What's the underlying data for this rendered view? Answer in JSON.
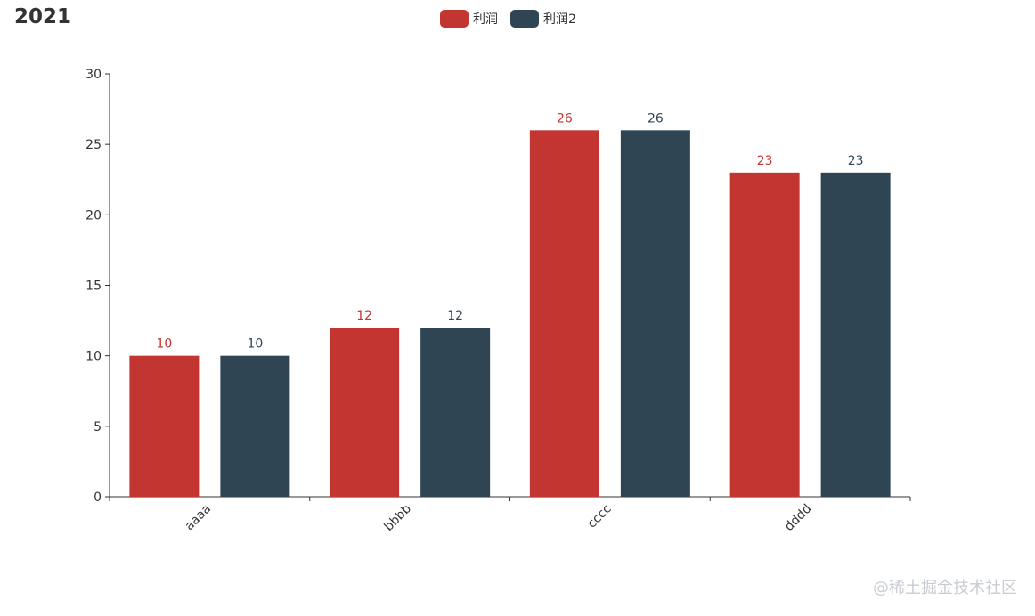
{
  "chart_data": {
    "type": "bar",
    "title": "2021",
    "categories": [
      "aaaa",
      "bbbb",
      "cccc",
      "dddd"
    ],
    "series": [
      {
        "name": "利润",
        "values": [
          10,
          12,
          26,
          23
        ],
        "color": "#c23531"
      },
      {
        "name": "利润2",
        "values": [
          10,
          12,
          26,
          23
        ],
        "color": "#2f4554"
      }
    ],
    "ylim": [
      0,
      30
    ],
    "yticks": [
      0,
      5,
      10,
      15,
      20,
      25,
      30
    ],
    "xlabel": "",
    "ylabel": "",
    "grid": false,
    "legend_position": "top-center",
    "x_tick_label_rotation": "45"
  },
  "watermark": "@稀土掘金技术社区"
}
